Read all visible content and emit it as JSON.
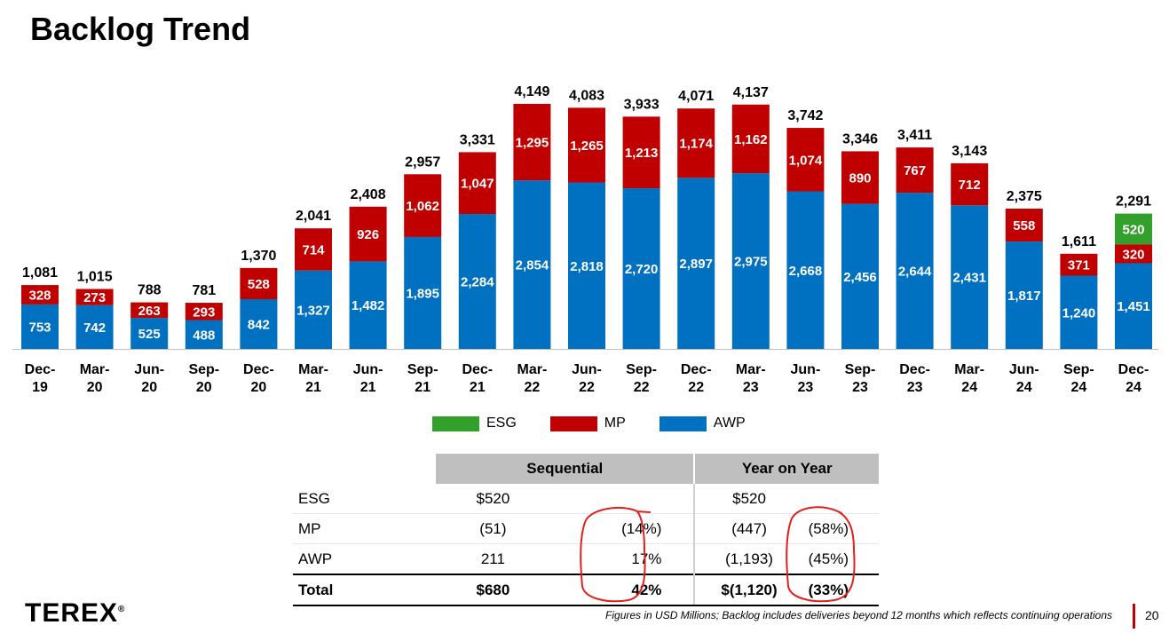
{
  "page": {
    "title": "Backlog Trend",
    "logo": "TEREX",
    "logo_mark": "®",
    "footnote": "Figures in USD Millions; Backlog includes deliveries beyond 12 months which reflects continuing operations",
    "page_number": "20"
  },
  "chart_data": {
    "type": "bar",
    "stacked": true,
    "title": "Backlog Trend",
    "categories": [
      "Dec-19",
      "Mar-20",
      "Jun-20",
      "Sep-20",
      "Dec-20",
      "Mar-21",
      "Jun-21",
      "Sep-21",
      "Dec-21",
      "Mar-22",
      "Jun-22",
      "Sep-22",
      "Dec-22",
      "Mar-23",
      "Jun-23",
      "Sep-23",
      "Dec-23",
      "Mar-24",
      "Jun-24",
      "Sep-24",
      "Dec-24"
    ],
    "category_lines": [
      [
        "Dec-",
        "19"
      ],
      [
        "Mar-",
        "20"
      ],
      [
        "Jun-",
        "20"
      ],
      [
        "Sep-",
        "20"
      ],
      [
        "Dec-",
        "20"
      ],
      [
        "Mar-",
        "21"
      ],
      [
        "Jun-",
        "21"
      ],
      [
        "Sep-",
        "21"
      ],
      [
        "Dec-",
        "21"
      ],
      [
        "Mar-",
        "22"
      ],
      [
        "Jun-",
        "22"
      ],
      [
        "Sep-",
        "22"
      ],
      [
        "Dec-",
        "22"
      ],
      [
        "Mar-",
        "23"
      ],
      [
        "Jun-",
        "23"
      ],
      [
        "Sep-",
        "23"
      ],
      [
        "Dec-",
        "23"
      ],
      [
        "Mar-",
        "24"
      ],
      [
        "Jun-",
        "24"
      ],
      [
        "Sep-",
        "24"
      ],
      [
        "Dec-",
        "24"
      ]
    ],
    "series": [
      {
        "name": "AWP",
        "color": "#0070c0",
        "values": [
          753,
          742,
          525,
          488,
          842,
          1327,
          1482,
          1895,
          2284,
          2854,
          2818,
          2720,
          2897,
          2975,
          2668,
          2456,
          2644,
          2431,
          1817,
          1240,
          1451
        ]
      },
      {
        "name": "MP",
        "color": "#c00000",
        "values": [
          328,
          273,
          263,
          293,
          528,
          714,
          926,
          1062,
          1047,
          1295,
          1265,
          1213,
          1174,
          1162,
          1074,
          890,
          767,
          712,
          558,
          371,
          320
        ]
      },
      {
        "name": "ESG",
        "color": "#33a02c",
        "values": [
          null,
          null,
          null,
          null,
          null,
          null,
          null,
          null,
          null,
          null,
          null,
          null,
          null,
          null,
          null,
          null,
          null,
          null,
          null,
          null,
          520
        ]
      }
    ],
    "totals": [
      1081,
      1015,
      788,
      781,
      1370,
      2041,
      2408,
      2957,
      3331,
      4149,
      4083,
      3933,
      4071,
      4137,
      3742,
      3346,
      3411,
      3143,
      2375,
      1611,
      2291
    ],
    "legend": [
      "ESG",
      "MP",
      "AWP"
    ],
    "legend_colors": [
      "#33a02c",
      "#c00000",
      "#0070c0"
    ],
    "legend_position": "bottom",
    "ylim": [
      0,
      4200
    ],
    "grid": false,
    "xlabel": "",
    "ylabel": ""
  },
  "summary_table": {
    "headers": [
      "Sequential",
      "Year on Year"
    ],
    "rows": [
      {
        "label": "ESG",
        "seq_value": "$520",
        "seq_pct": "",
        "yoy_value": "$520",
        "yoy_pct": ""
      },
      {
        "label": "MP",
        "seq_value": "(51)",
        "seq_pct": "(14%)",
        "yoy_value": "(447)",
        "yoy_pct": "(58%)"
      },
      {
        "label": "AWP",
        "seq_value": "211",
        "seq_pct": "17%",
        "yoy_value": "(1,193)",
        "yoy_pct": "(45%)"
      },
      {
        "label": "Total",
        "seq_value": "$680",
        "seq_pct": "42%",
        "yoy_value": "$(1,120)",
        "yoy_pct": "(33%)"
      }
    ],
    "annotation_color": "#e0201c"
  }
}
